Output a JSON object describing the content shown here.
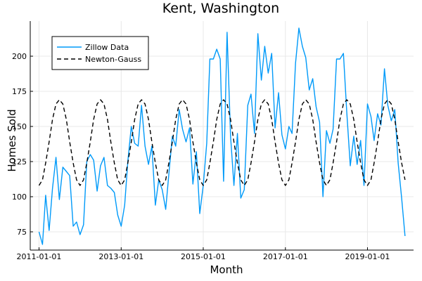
{
  "chart_data": {
    "type": "line",
    "title": "Kent, Washington",
    "xlabel": "Month",
    "ylabel": "Homes Sold",
    "x_start": "2011-01-01",
    "x_end": "2019-12-01",
    "xlim": [
      "2010-10-15",
      "2020-02-15"
    ],
    "ylim": [
      62,
      225
    ],
    "xticks": [
      "2011-01-01",
      "2013-01-01",
      "2015-01-01",
      "2017-01-01",
      "2019-01-01"
    ],
    "yticks": [
      75,
      100,
      125,
      150,
      175,
      200
    ],
    "grid": true,
    "legend_position": "top-left",
    "series": [
      {
        "name": "Zillow Data",
        "style": "solid",
        "color": "#009af9",
        "values": [
          75,
          66,
          101,
          76,
          106,
          128,
          98,
          121,
          118,
          115,
          79,
          82,
          73,
          80,
          125,
          130,
          126,
          104,
          122,
          128,
          108,
          106,
          103,
          87,
          79,
          94,
          125,
          150,
          138,
          136,
          165,
          136,
          123,
          136,
          94,
          112,
          105,
          91,
          116,
          143,
          136,
          162,
          148,
          139,
          149,
          109,
          132,
          88,
          108,
          138,
          198,
          198,
          205,
          198,
          111,
          217,
          143,
          108,
          145,
          99,
          105,
          165,
          173,
          145,
          216,
          183,
          207,
          188,
          202,
          149,
          174,
          144,
          134,
          150,
          145,
          195,
          220,
          207,
          199,
          176,
          184,
          164,
          153,
          100,
          147,
          138,
          148,
          198,
          198,
          202,
          160,
          122,
          143,
          123,
          140,
          108,
          166,
          157,
          140,
          159,
          151,
          191,
          165,
          154,
          162,
          124,
          99,
          72
        ]
      },
      {
        "name": "Newton-Gauss",
        "style": "dashed",
        "color": "#000000",
        "values": [
          108,
          112,
          124,
          139,
          155,
          166,
          169,
          166,
          155,
          139,
          124,
          112,
          108,
          112,
          124,
          139,
          155,
          166,
          169,
          166,
          155,
          139,
          124,
          112,
          108,
          112,
          124,
          139,
          155,
          166,
          169,
          166,
          155,
          139,
          124,
          112,
          108,
          112,
          124,
          139,
          155,
          166,
          169,
          166,
          155,
          139,
          124,
          112,
          108,
          112,
          124,
          139,
          155,
          166,
          169,
          166,
          155,
          139,
          124,
          112,
          108,
          112,
          124,
          139,
          155,
          166,
          169,
          166,
          155,
          139,
          124,
          112,
          108,
          112,
          124,
          139,
          155,
          166,
          169,
          166,
          155,
          139,
          124,
          112,
          108,
          112,
          124,
          139,
          155,
          166,
          169,
          166,
          155,
          139,
          124,
          112,
          108,
          112,
          124,
          139,
          155,
          166,
          169,
          166,
          155,
          139,
          124,
          112
        ]
      }
    ]
  }
}
